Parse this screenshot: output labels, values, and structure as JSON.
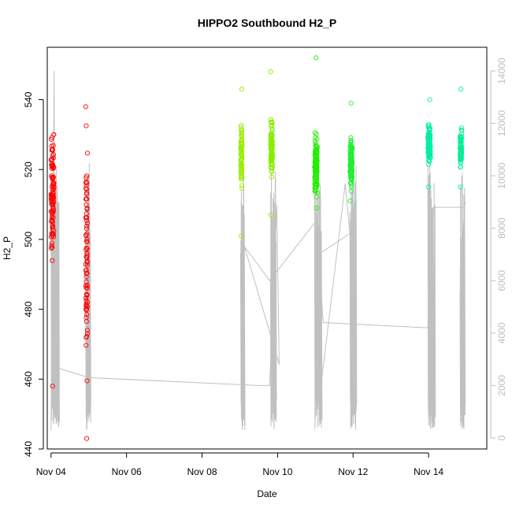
{
  "chart_data": {
    "type": "scatter",
    "title": "HIPPO2 Southbound H2_P",
    "xlabel": "Date",
    "ylabel": "H2_P",
    "xlim": [
      "2009-11-03T21:36",
      "2009-11-15T13:00"
    ],
    "x_ticks": [
      {
        "date": "2009-11-04",
        "label": "Nov 04"
      },
      {
        "date": "2009-11-06",
        "label": "Nov 06"
      },
      {
        "date": "2009-11-08",
        "label": "Nov 08"
      },
      {
        "date": "2009-11-10",
        "label": "Nov 10"
      },
      {
        "date": "2009-11-12",
        "label": "Nov 12"
      },
      {
        "date": "2009-11-14",
        "label": "Nov 14"
      }
    ],
    "ylim": [
      440,
      555
    ],
    "y_ticks": [
      440,
      460,
      480,
      500,
      520,
      540
    ],
    "y2lim": [
      0,
      14000
    ],
    "y2_ticks": [
      0,
      2000,
      4000,
      6000,
      8000,
      10000,
      12000,
      14000
    ],
    "grid": false,
    "legend": "none",
    "colors": {
      "flight1": "#ff0000",
      "flight2": "#e31a1c",
      "flight3": "#99ee00",
      "flight4": "#88ee00",
      "flight5": "#00ee00",
      "flight6": "#22ee33",
      "flight7": "#00eeaa",
      "flight8": "#00ee99",
      "altitude": "#c0c0c0"
    },
    "flights": [
      {
        "name": "",
        "color": "#ff0000",
        "start": "2009-11-04T00:00",
        "end": "2009-11-04T05:00",
        "min": 458,
        "max": 530,
        "center": 512,
        "spread": 14,
        "n": 110
      },
      {
        "name": "",
        "color": "#ff0000",
        "start": "2009-11-04T22:00",
        "end": "2009-11-05T01:00",
        "min": 443,
        "max": 538,
        "center": 497,
        "spread": 28,
        "n": 80
      },
      {
        "name": "",
        "color": "#99ee00",
        "start": "2009-11-09T00:30",
        "end": "2009-11-09T03:00",
        "min": 501,
        "max": 543,
        "center": 524,
        "spread": 7,
        "n": 80
      },
      {
        "name": "",
        "color": "#88ee00",
        "start": "2009-11-09T19:30",
        "end": "2009-11-09T23:00",
        "min": 507,
        "max": 548,
        "center": 526,
        "spread": 6,
        "n": 95
      },
      {
        "name": "",
        "color": "#22ee00",
        "start": "2009-11-10T23:30",
        "end": "2009-11-11T04:00",
        "min": 509,
        "max": 552,
        "center": 520,
        "spread": 7,
        "n": 110
      },
      {
        "name": "",
        "color": "#22ee33",
        "start": "2009-11-11T22:00",
        "end": "2009-11-12T02:00",
        "min": 511,
        "max": 539,
        "center": 522,
        "spread": 6,
        "n": 100
      },
      {
        "name": "",
        "color": "#00eeaa",
        "start": "2009-11-13T23:30",
        "end": "2009-11-14T04:00",
        "min": 515,
        "max": 540,
        "center": 527,
        "spread": 4,
        "n": 110
      },
      {
        "name": "",
        "color": "#00ee99",
        "start": "2009-11-14T20:00",
        "end": "2009-11-14T23:00",
        "min": 515,
        "max": 543,
        "center": 526,
        "spread": 4,
        "n": 70
      }
    ],
    "altitude_path": [
      [
        "2009-11-04T00:00",
        300
      ],
      [
        "2009-11-04T02:00",
        14000
      ],
      [
        "2009-11-04T02:10",
        2800
      ],
      [
        "2009-11-04T02:30",
        2700
      ],
      [
        "2009-11-05T00:00",
        2300
      ],
      [
        "2009-11-09T12:00",
        2000
      ],
      [
        "2009-11-09T19:00",
        2000
      ],
      [
        "2009-11-09T23:30",
        8900
      ],
      [
        "2009-11-10T01:00",
        2800
      ],
      [
        "2009-11-09T03:00",
        7300
      ],
      [
        "2009-11-09T19:00",
        6000
      ],
      [
        "2009-11-10T23:30",
        8200
      ],
      [
        "2009-11-11T04:00",
        2200
      ],
      [
        "2009-11-11T19:00",
        9700
      ],
      [
        "2009-11-11T22:00",
        7800
      ],
      [
        "2009-11-11T02:00",
        7000
      ],
      [
        "2009-11-11T05:00",
        4400
      ],
      [
        "2009-11-13T23:30",
        4200
      ],
      [
        "2009-11-14T03:00",
        8800
      ],
      [
        "2009-11-14T22:30",
        8800
      ],
      [
        "2009-11-14T23:30",
        9000
      ]
    ]
  }
}
